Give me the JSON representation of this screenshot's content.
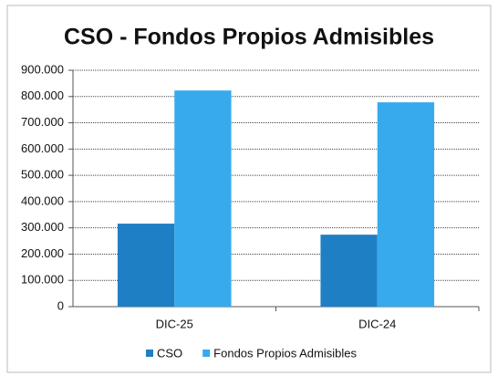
{
  "chart_data": {
    "type": "bar",
    "title": "CSO - Fondos Propios Admisibles",
    "categories": [
      "DIC-25",
      "DIC-24"
    ],
    "series": [
      {
        "name": "CSO",
        "color": "#1f7fc4",
        "values": [
          316000,
          274000
        ]
      },
      {
        "name": "Fondos Propios Admisibles",
        "color": "#36aaec",
        "values": [
          823000,
          778000
        ]
      }
    ],
    "ylim": [
      0,
      900000
    ],
    "yticks": [
      0,
      {
        "value": 100000,
        "label": "100.000"
      },
      {
        "value": 200000,
        "label": "200.000"
      },
      {
        "value": 300000,
        "label": "300.000"
      },
      {
        "value": 400000,
        "label": "400.000"
      },
      {
        "value": 500000,
        "label": "500.000"
      },
      {
        "value": 600000,
        "label": "600.000"
      },
      {
        "value": 700000,
        "label": "700.000"
      },
      {
        "value": 800000,
        "label": "800.000"
      },
      {
        "value": 900000,
        "label": "900.000"
      }
    ],
    "grid": true,
    "legend": "bottom"
  }
}
